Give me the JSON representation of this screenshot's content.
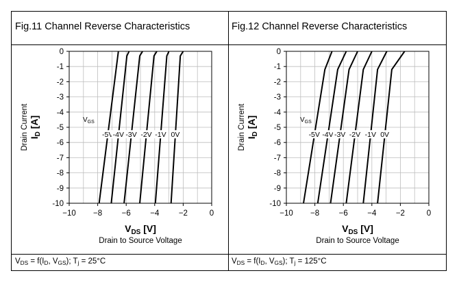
{
  "chart_data": [
    {
      "type": "line",
      "title": "Fig.11  Channel Reverse Characteristics",
      "xlabel": {
        "main": "V",
        "sub": "DS",
        "unit": " [V]"
      },
      "xlabel_desc": "Drain to Source Voltage",
      "ylabel": {
        "main": "I",
        "sub": "D",
        "unit": " [A]"
      },
      "ylabel_desc": "Drain Current",
      "xlim": [
        -10,
        0
      ],
      "ylim": [
        -10,
        0
      ],
      "x_ticks": [
        -10,
        -8,
        -6,
        -4,
        -2,
        0
      ],
      "y_ticks": [
        0,
        -1,
        -2,
        -3,
        -4,
        -5,
        -6,
        -7,
        -8,
        -9,
        -10
      ],
      "grid": true,
      "vgs_label": {
        "main": "V",
        "sub": "GS"
      },
      "condition": {
        "p1": "V",
        "s1": "DS",
        "p2": " = f(I",
        "s2": "D",
        "p3": ", V",
        "s3": "GS",
        "p4": "); T",
        "s4": "j",
        "p5": " = 25°C"
      },
      "series": [
        {
          "name": "-5V",
          "points": [
            [
              -7.9,
              -10
            ],
            [
              -6.55,
              0
            ]
          ]
        },
        {
          "name": "-4V",
          "points": [
            [
              -7.05,
              -10
            ],
            [
              -5.95,
              -0.3
            ],
            [
              -5.8,
              0
            ]
          ]
        },
        {
          "name": "-3V",
          "points": [
            [
              -6.15,
              -10
            ],
            [
              -5.05,
              -0.3
            ],
            [
              -4.85,
              0
            ]
          ]
        },
        {
          "name": "-2V",
          "points": [
            [
              -5.05,
              -10
            ],
            [
              -4.05,
              -0.3
            ],
            [
              -3.85,
              0
            ]
          ]
        },
        {
          "name": "-1V",
          "points": [
            [
              -3.95,
              -10
            ],
            [
              -3.15,
              -0.3
            ],
            [
              -3.0,
              0
            ]
          ]
        },
        {
          "name": "0V",
          "points": [
            [
              -2.85,
              -10
            ],
            [
              -2.2,
              -0.3
            ],
            [
              -2.0,
              0
            ]
          ]
        }
      ]
    },
    {
      "type": "line",
      "title": "Fig.12  Channel Reverse Characteristics",
      "xlabel": {
        "main": "V",
        "sub": "DS",
        "unit": " [V]"
      },
      "xlabel_desc": "Drain to Source Voltage",
      "ylabel": {
        "main": "I",
        "sub": "D",
        "unit": " [A]"
      },
      "ylabel_desc": "Drain Current",
      "xlim": [
        -10,
        0
      ],
      "ylim": [
        -10,
        0
      ],
      "x_ticks": [
        -10,
        -8,
        -6,
        -4,
        -2,
        0
      ],
      "y_ticks": [
        0,
        -1,
        -2,
        -3,
        -4,
        -5,
        -6,
        -7,
        -8,
        -9,
        -10
      ],
      "grid": true,
      "vgs_label": {
        "main": "V",
        "sub": "GS"
      },
      "condition": {
        "p1": "V",
        "s1": "DS",
        "p2": " = f(I",
        "s2": "D",
        "p3": ", V",
        "s3": "GS",
        "p4": "); T",
        "s4": "j",
        "p5": " = 125°C"
      },
      "series": [
        {
          "name": "-5V",
          "points": [
            [
              -8.8,
              -10
            ],
            [
              -7.3,
              -1.2
            ],
            [
              -6.8,
              0
            ]
          ]
        },
        {
          "name": "-4V",
          "points": [
            [
              -7.8,
              -10
            ],
            [
              -6.4,
              -1.2
            ],
            [
              -5.8,
              0
            ]
          ]
        },
        {
          "name": "-3V",
          "points": [
            [
              -6.9,
              -10
            ],
            [
              -5.6,
              -1.2
            ],
            [
              -5.0,
              0
            ]
          ]
        },
        {
          "name": "-2V",
          "points": [
            [
              -5.8,
              -10
            ],
            [
              -4.6,
              -1.2
            ],
            [
              -4.0,
              0
            ]
          ]
        },
        {
          "name": "-1V",
          "points": [
            [
              -4.6,
              -10
            ],
            [
              -3.6,
              -1.2
            ],
            [
              -2.95,
              0
            ]
          ]
        },
        {
          "name": "0V",
          "points": [
            [
              -3.6,
              -10
            ],
            [
              -2.6,
              -1.2
            ],
            [
              -1.7,
              0
            ]
          ]
        }
      ]
    }
  ]
}
